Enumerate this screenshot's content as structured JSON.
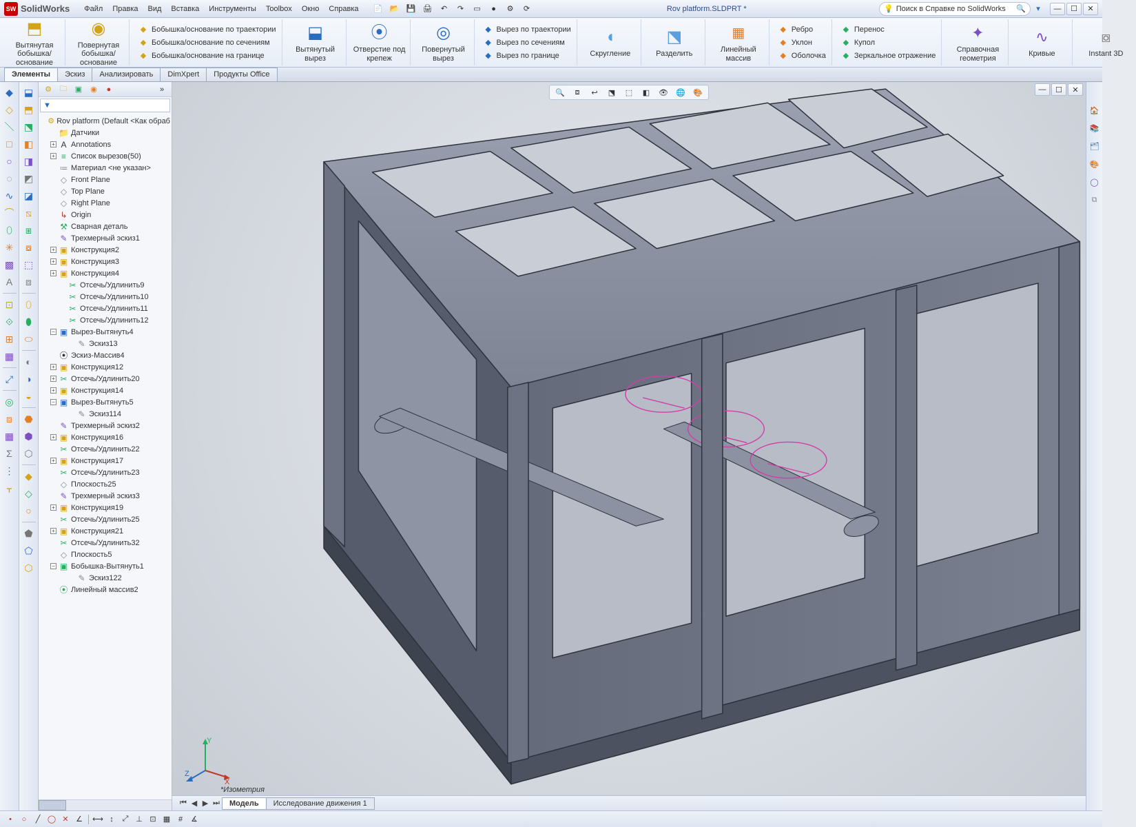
{
  "app": {
    "brand": "SolidWorks",
    "doc_title": "Rov platform.SLDPRT *",
    "search_placeholder": "Поиск в Справке по SolidWorks"
  },
  "menus": [
    "Файл",
    "Правка",
    "Вид",
    "Вставка",
    "Инструменты",
    "Toolbox",
    "Окно",
    "Справка"
  ],
  "ribbon": {
    "big": [
      {
        "label": "Вытянутая\nбобышка/основание",
        "color": "#d4a418"
      },
      {
        "label": "Повернутая\nбобышка/основание",
        "color": "#d4a418"
      },
      {
        "label": "Вытянутый\nвырез",
        "color": "#2a6cc0"
      },
      {
        "label": "Отверстие\nпод\nкрепеж",
        "color": "#2a6cc0"
      },
      {
        "label": "Повернутый\nвырез",
        "color": "#2a6cc0"
      },
      {
        "label": "Скругление",
        "color": "#5aa0e0"
      },
      {
        "label": "Разделить",
        "color": "#5aa0e0"
      },
      {
        "label": "Линейный\nмассив",
        "color": "#e67e22"
      },
      {
        "label": "Справочная\nгеометрия",
        "color": "#7d4fc4"
      },
      {
        "label": "Кривые",
        "color": "#7d4fc4"
      },
      {
        "label": "Instant\n3D",
        "color": "#888"
      }
    ],
    "col1": [
      {
        "label": "Бобышка/основание по траектории"
      },
      {
        "label": "Бобышка/основание по сечениям"
      },
      {
        "label": "Бобышка/основание на границе"
      }
    ],
    "col2": [
      {
        "label": "Вырез по траектории"
      },
      {
        "label": "Вырез по сечениям"
      },
      {
        "label": "Вырез по границе"
      }
    ],
    "col3": [
      {
        "label": "Ребро"
      },
      {
        "label": "Уклон"
      },
      {
        "label": "Оболочка"
      }
    ],
    "col4": [
      {
        "label": "Перенос"
      },
      {
        "label": "Купол"
      },
      {
        "label": "Зеркальное отражение"
      }
    ]
  },
  "tabs": [
    "Элементы",
    "Эскиз",
    "Анализировать",
    "DimXpert",
    "Продукты Office"
  ],
  "tree": {
    "filter": "",
    "root": "Rov platform  (Default <Как обраб",
    "items": [
      {
        "ind": 1,
        "exp": " ",
        "ico": "📁",
        "color": "#d4a418",
        "label": "Датчики"
      },
      {
        "ind": 1,
        "exp": "+",
        "ico": "A",
        "color": "#333",
        "label": "Annotations"
      },
      {
        "ind": 1,
        "exp": "+",
        "ico": "≡",
        "color": "#27ae60",
        "label": "Список вырезов(50)"
      },
      {
        "ind": 1,
        "exp": " ",
        "ico": "≔",
        "color": "#888",
        "label": "Материал <не указан>"
      },
      {
        "ind": 1,
        "exp": " ",
        "ico": "◇",
        "color": "#888",
        "label": "Front Plane"
      },
      {
        "ind": 1,
        "exp": " ",
        "ico": "◇",
        "color": "#888",
        "label": "Top Plane"
      },
      {
        "ind": 1,
        "exp": " ",
        "ico": "◇",
        "color": "#888",
        "label": "Right Plane"
      },
      {
        "ind": 1,
        "exp": " ",
        "ico": "↳",
        "color": "#c0392b",
        "label": "Origin"
      },
      {
        "ind": 1,
        "exp": " ",
        "ico": "⚒",
        "color": "#27ae60",
        "label": "Сварная деталь"
      },
      {
        "ind": 1,
        "exp": " ",
        "ico": "✎",
        "color": "#7d4fc4",
        "label": "Трехмерный эскиз1"
      },
      {
        "ind": 1,
        "exp": "+",
        "ico": "▣",
        "color": "#d4a418",
        "label": "Конструкция2"
      },
      {
        "ind": 1,
        "exp": "+",
        "ico": "▣",
        "color": "#d4a418",
        "label": "Конструкция3"
      },
      {
        "ind": 1,
        "exp": "+",
        "ico": "▣",
        "color": "#d4a418",
        "label": "Конструкция4"
      },
      {
        "ind": 2,
        "exp": " ",
        "ico": "✂",
        "color": "#27ae60",
        "label": "Отсечь/Удлинить9"
      },
      {
        "ind": 2,
        "exp": " ",
        "ico": "✂",
        "color": "#27ae60",
        "label": "Отсечь/Удлинить10"
      },
      {
        "ind": 2,
        "exp": " ",
        "ico": "✂",
        "color": "#27ae60",
        "label": "Отсечь/Удлинить11"
      },
      {
        "ind": 2,
        "exp": " ",
        "ico": "✂",
        "color": "#27ae60",
        "label": "Отсечь/Удлинить12"
      },
      {
        "ind": 1,
        "exp": "−",
        "ico": "▣",
        "color": "#2a6cc0",
        "label": "Вырез-Вытянуть4"
      },
      {
        "ind": 3,
        "exp": " ",
        "ico": "✎",
        "color": "#888",
        "label": "Эскиз13"
      },
      {
        "ind": 1,
        "exp": " ",
        "ico": "⦿",
        "color": "#333",
        "label": "Эскиз-Массив4"
      },
      {
        "ind": 1,
        "exp": "+",
        "ico": "▣",
        "color": "#d4a418",
        "label": "Конструкция12"
      },
      {
        "ind": 1,
        "exp": "+",
        "ico": "✂",
        "color": "#27ae60",
        "label": "Отсечь/Удлинить20"
      },
      {
        "ind": 1,
        "exp": "+",
        "ico": "▣",
        "color": "#d4a418",
        "label": "Конструкция14"
      },
      {
        "ind": 1,
        "exp": "−",
        "ico": "▣",
        "color": "#2a6cc0",
        "label": "Вырез-Вытянуть5"
      },
      {
        "ind": 3,
        "exp": " ",
        "ico": "✎",
        "color": "#888",
        "label": "Эскиз114"
      },
      {
        "ind": 1,
        "exp": " ",
        "ico": "✎",
        "color": "#7d4fc4",
        "label": "Трехмерный эскиз2"
      },
      {
        "ind": 1,
        "exp": "+",
        "ico": "▣",
        "color": "#d4a418",
        "label": "Конструкция16"
      },
      {
        "ind": 1,
        "exp": " ",
        "ico": "✂",
        "color": "#27ae60",
        "label": "Отсечь/Удлинить22"
      },
      {
        "ind": 1,
        "exp": "+",
        "ico": "▣",
        "color": "#d4a418",
        "label": "Конструкция17"
      },
      {
        "ind": 1,
        "exp": " ",
        "ico": "✂",
        "color": "#27ae60",
        "label": "Отсечь/Удлинить23"
      },
      {
        "ind": 1,
        "exp": " ",
        "ico": "◇",
        "color": "#888",
        "label": "Плоскость25"
      },
      {
        "ind": 1,
        "exp": " ",
        "ico": "✎",
        "color": "#7d4fc4",
        "label": "Трехмерный эскиз3"
      },
      {
        "ind": 1,
        "exp": "+",
        "ico": "▣",
        "color": "#d4a418",
        "label": "Конструкция19"
      },
      {
        "ind": 1,
        "exp": " ",
        "ico": "✂",
        "color": "#27ae60",
        "label": "Отсечь/Удлинить25"
      },
      {
        "ind": 1,
        "exp": "+",
        "ico": "▣",
        "color": "#d4a418",
        "label": "Конструкция21"
      },
      {
        "ind": 1,
        "exp": " ",
        "ico": "✂",
        "color": "#27ae60",
        "label": "Отсечь/Удлинить32"
      },
      {
        "ind": 1,
        "exp": " ",
        "ico": "◇",
        "color": "#888",
        "label": "Плоскость5"
      },
      {
        "ind": 1,
        "exp": "−",
        "ico": "▣",
        "color": "#27ae60",
        "label": "Бобышка-Вытянуть1"
      },
      {
        "ind": 3,
        "exp": " ",
        "ico": "✎",
        "color": "#888",
        "label": "Эскиз122"
      },
      {
        "ind": 1,
        "exp": " ",
        "ico": "⦿",
        "color": "#27ae60",
        "label": "Линейный массив2"
      }
    ]
  },
  "bottom_tabs": [
    "Модель",
    "Исследование движения 1"
  ],
  "view_label": "*Изометрия",
  "triad": {
    "x": "X",
    "y": "Y",
    "z": "Z",
    "colors": {
      "x": "#c0392b",
      "y": "#27ae60",
      "z": "#2a6cc0"
    }
  },
  "model": {
    "stroke": "#3a3f48",
    "fill_top": "#8e94a4",
    "fill_side": "#6d7383",
    "fill_front": "#7a8090",
    "highlight": "#d23ea8",
    "bg_center": "#e8ebf0",
    "bg_edge": "#c7ccd4"
  }
}
